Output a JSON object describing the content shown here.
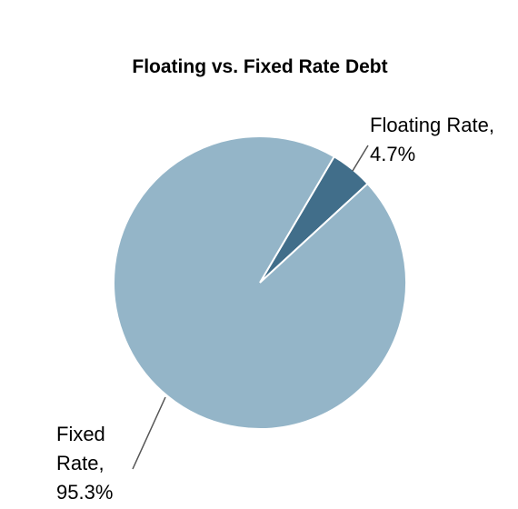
{
  "chart_data": {
    "type": "pie",
    "title": "Floating vs. Fixed Rate Debt",
    "values": [
      4.7,
      95.3
    ],
    "value_labels": [
      "Floating Rate, 4.7%",
      "Fixed Rate, 95.3%"
    ],
    "colors": [
      "#416e8a",
      "#94b5c8"
    ]
  }
}
